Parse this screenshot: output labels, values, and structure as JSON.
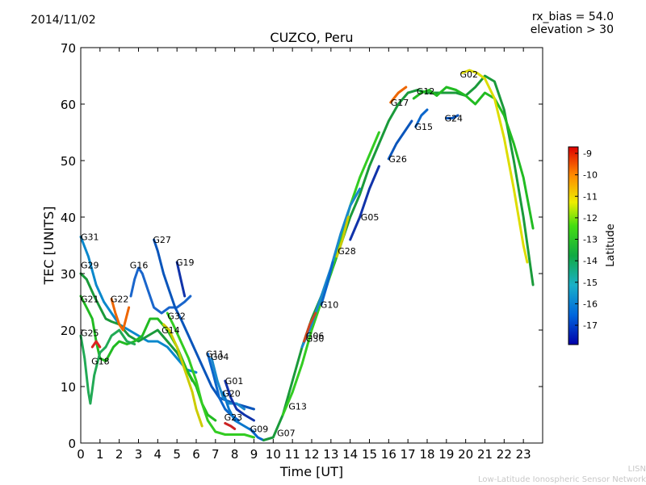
{
  "header": {
    "date": "2014/11/02",
    "rx_bias": "rx_bias = 54.0",
    "elevation": "elevation > 30"
  },
  "credit": {
    "short": "LISN",
    "long": "Low-Latitude Ionospheric Sensor Network"
  },
  "chart_data": {
    "type": "scatter",
    "title": "CUZCO, Peru",
    "xlabel": "Time [UT]",
    "ylabel": "TEC [UNITS]",
    "xlim": [
      0,
      24
    ],
    "ylim": [
      0,
      70
    ],
    "xticks": [
      "0",
      "1",
      "2",
      "3",
      "4",
      "5",
      "6",
      "7",
      "8",
      "9",
      "10",
      "11",
      "12",
      "13",
      "14",
      "15",
      "16",
      "17",
      "18",
      "19",
      "20",
      "21",
      "22",
      "23"
    ],
    "yticks": [
      "0",
      "10",
      "20",
      "30",
      "40",
      "50",
      "60",
      "70"
    ],
    "grid": false,
    "colorbar": {
      "label": "Latitude",
      "range": [
        -17.9,
        -8.7
      ],
      "ticks": [
        "-9",
        "-10",
        "-11",
        "-12",
        "-13",
        "-14",
        "-15",
        "-16",
        "-17"
      ]
    },
    "series": [
      {
        "name": "G31",
        "label_at": [
          0.0,
          36.5
        ],
        "color": "#0a88cc",
        "points": [
          [
            0.0,
            36.5
          ],
          [
            0.4,
            33
          ],
          [
            0.8,
            28
          ],
          [
            1.2,
            25
          ],
          [
            1.6,
            23
          ],
          [
            2.0,
            21
          ],
          [
            2.5,
            20
          ],
          [
            3.0,
            19
          ],
          [
            3.5,
            18
          ],
          [
            4.0,
            18
          ],
          [
            4.5,
            17
          ],
          [
            5.0,
            15
          ],
          [
            5.5,
            13
          ],
          [
            6.0,
            12.5
          ]
        ]
      },
      {
        "name": "G29",
        "label_at": [
          0.0,
          31.5
        ],
        "color": "#1a9a3a",
        "points": [
          [
            0.0,
            30
          ],
          [
            0.3,
            29
          ],
          [
            0.7,
            26
          ],
          [
            1.0,
            24
          ],
          [
            1.3,
            22
          ],
          [
            1.6,
            21.5
          ],
          [
            2.0,
            21
          ],
          [
            2.5,
            19
          ],
          [
            3.0,
            18
          ],
          [
            3.5,
            19
          ],
          [
            4.0,
            20
          ],
          [
            4.5,
            18
          ],
          [
            5.0,
            16
          ],
          [
            5.5,
            13
          ],
          [
            5.8,
            11
          ]
        ]
      },
      {
        "name": "G21",
        "label_at": [
          0.0,
          25.5
        ],
        "color": "#22bb22",
        "points": [
          [
            0.0,
            26
          ],
          [
            0.3,
            24
          ],
          [
            0.6,
            22
          ],
          [
            0.8,
            18
          ],
          [
            1.0,
            15
          ],
          [
            1.3,
            14.5
          ],
          [
            1.7,
            17
          ],
          [
            2.0,
            18
          ],
          [
            2.4,
            17.5
          ],
          [
            2.8,
            18
          ],
          [
            3.2,
            19
          ],
          [
            3.6,
            22
          ],
          [
            4.0,
            22
          ],
          [
            4.5,
            20
          ],
          [
            5.0,
            17
          ],
          [
            5.5,
            13
          ],
          [
            6.0,
            10
          ],
          [
            6.3,
            7
          ],
          [
            6.6,
            5
          ],
          [
            7.0,
            4
          ]
        ]
      },
      {
        "name": "G22",
        "label_at": [
          1.55,
          25.5
        ],
        "color": "#ee6600",
        "points": [
          [
            1.6,
            25.5
          ],
          [
            1.8,
            23
          ],
          [
            2.0,
            21
          ],
          [
            2.2,
            20
          ],
          [
            2.5,
            24
          ]
        ]
      },
      {
        "name": "G25",
        "label_at": [
          0.0,
          19.5
        ],
        "color": "#22aa55",
        "points": [
          [
            0.0,
            19
          ],
          [
            0.2,
            15
          ],
          [
            0.4,
            9
          ],
          [
            0.5,
            7
          ],
          [
            0.7,
            12
          ],
          [
            1.0,
            16
          ],
          [
            1.3,
            17
          ],
          [
            1.6,
            19
          ],
          [
            2.0,
            20
          ],
          [
            2.4,
            18
          ],
          [
            2.8,
            17.5
          ]
        ]
      },
      {
        "name": "G18",
        "label_at": [
          0.55,
          14.5
        ],
        "color": "#dd2222",
        "points": [
          [
            0.6,
            17
          ],
          [
            0.8,
            18
          ],
          [
            1.0,
            17
          ]
        ]
      },
      {
        "name": "G16",
        "label_at": [
          2.55,
          31.5
        ],
        "color": "#1a66cc",
        "points": [
          [
            2.6,
            26
          ],
          [
            2.8,
            29
          ],
          [
            3.0,
            31
          ],
          [
            3.2,
            30
          ],
          [
            3.5,
            27
          ],
          [
            3.8,
            24
          ],
          [
            4.2,
            23
          ],
          [
            4.6,
            24
          ],
          [
            5.0,
            24
          ],
          [
            5.4,
            25
          ],
          [
            5.7,
            26
          ]
        ]
      },
      {
        "name": "G27",
        "label_at": [
          3.75,
          36.0
        ],
        "color": "#0a55bb",
        "points": [
          [
            3.8,
            36
          ],
          [
            4.0,
            34
          ],
          [
            4.3,
            30
          ],
          [
            4.6,
            27
          ],
          [
            4.9,
            24
          ],
          [
            5.2,
            22
          ],
          [
            5.6,
            19
          ],
          [
            6.0,
            16
          ],
          [
            6.4,
            13
          ],
          [
            6.8,
            10
          ],
          [
            7.2,
            8
          ],
          [
            7.6,
            7.5
          ],
          [
            8.0,
            7
          ],
          [
            8.5,
            6.5
          ],
          [
            9.0,
            6
          ]
        ]
      },
      {
        "name": "G19",
        "label_at": [
          4.95,
          32.0
        ],
        "color": "#1133aa",
        "points": [
          [
            5.0,
            32
          ],
          [
            5.2,
            29
          ],
          [
            5.4,
            26
          ]
        ]
      },
      {
        "name": "G32",
        "label_at": [
          4.5,
          22.5
        ],
        "color": "#33cc22",
        "points": [
          [
            4.5,
            23
          ],
          [
            4.8,
            21
          ],
          [
            5.2,
            18
          ],
          [
            5.6,
            15
          ],
          [
            6.0,
            11
          ],
          [
            6.3,
            7
          ],
          [
            6.6,
            4
          ],
          [
            7.0,
            2
          ],
          [
            7.5,
            1.5
          ],
          [
            8.0,
            1.5
          ],
          [
            8.5,
            1.5
          ],
          [
            9.0,
            1
          ]
        ]
      },
      {
        "name": "G14",
        "label_at": [
          4.2,
          20.0
        ],
        "color": "#cccc00",
        "points": [
          [
            4.3,
            21
          ],
          [
            4.6,
            20
          ],
          [
            5.0,
            17
          ],
          [
            5.4,
            13
          ],
          [
            5.8,
            9
          ],
          [
            6.0,
            6
          ],
          [
            6.3,
            3
          ]
        ]
      },
      {
        "name": "G11",
        "label_at": [
          6.5,
          15.8
        ],
        "color": "#0a66cc",
        "points": [
          [
            6.6,
            15.8
          ],
          [
            6.9,
            12
          ],
          [
            7.2,
            8
          ],
          [
            7.5,
            6
          ],
          [
            7.8,
            5
          ],
          [
            8.2,
            4
          ]
        ]
      },
      {
        "name": "G04",
        "label_at": [
          6.75,
          15.3
        ],
        "color": "#1a88cc",
        "points": [
          [
            6.8,
            15
          ],
          [
            7.1,
            11
          ],
          [
            7.4,
            8
          ],
          [
            7.7,
            7
          ],
          [
            8.1,
            7
          ],
          [
            8.5,
            6
          ]
        ]
      },
      {
        "name": "G01",
        "label_at": [
          7.5,
          11.0
        ],
        "color": "#1133aa",
        "points": [
          [
            7.5,
            11
          ],
          [
            7.8,
            8
          ],
          [
            8.1,
            6
          ],
          [
            8.5,
            5
          ],
          [
            9.0,
            4
          ]
        ]
      },
      {
        "name": "G20",
        "label_at": [
          7.35,
          8.8
        ],
        "color": "#0a77cc",
        "points": [
          [
            7.4,
            9
          ],
          [
            7.7,
            6
          ],
          [
            8.0,
            4
          ],
          [
            8.5,
            3
          ],
          [
            9.0,
            2
          ]
        ]
      },
      {
        "name": "G23",
        "label_at": [
          7.45,
          4.6
        ],
        "color": "#cc2222",
        "points": [
          [
            7.5,
            3.5
          ],
          [
            7.8,
            3
          ],
          [
            8.0,
            2.5
          ]
        ]
      },
      {
        "name": "G09",
        "label_at": [
          8.8,
          2.5
        ],
        "color": "#0a66cc",
        "points": [
          [
            8.8,
            2.5
          ],
          [
            9.2,
            1
          ],
          [
            9.5,
            0.5
          ]
        ]
      },
      {
        "name": "G07",
        "label_at": [
          10.2,
          1.8
        ],
        "color": "#1a9a3a",
        "points": [
          [
            9.5,
            0.5
          ],
          [
            10.0,
            1
          ],
          [
            10.5,
            5
          ],
          [
            11.0,
            11
          ],
          [
            11.5,
            17
          ],
          [
            12.0,
            22
          ],
          [
            12.5,
            26
          ],
          [
            13.0,
            30
          ],
          [
            13.5,
            35
          ],
          [
            14.0,
            40
          ],
          [
            14.5,
            44
          ],
          [
            15.0,
            49
          ],
          [
            15.5,
            53
          ],
          [
            16.0,
            57
          ],
          [
            16.5,
            60
          ],
          [
            17.0,
            62
          ],
          [
            17.5,
            62.5
          ],
          [
            18.0,
            62
          ],
          [
            18.5,
            62
          ],
          [
            19.0,
            62
          ],
          [
            19.5,
            62
          ],
          [
            20.0,
            61.5
          ],
          [
            20.5,
            63
          ],
          [
            21.0,
            65
          ],
          [
            21.5,
            64
          ],
          [
            22.0,
            59
          ],
          [
            22.5,
            50
          ],
          [
            23.0,
            40
          ],
          [
            23.5,
            28
          ]
        ]
      },
      {
        "name": "G13",
        "label_at": [
          10.8,
          6.5
        ],
        "color": "#33cc22",
        "points": [
          [
            10.5,
            5
          ],
          [
            11.0,
            9
          ],
          [
            11.5,
            14
          ],
          [
            12.0,
            20
          ],
          [
            12.5,
            25
          ],
          [
            13.0,
            30
          ],
          [
            13.5,
            36
          ],
          [
            14.0,
            42
          ],
          [
            14.5,
            47
          ],
          [
            15.0,
            51
          ],
          [
            15.5,
            55
          ]
        ]
      },
      {
        "name": "G06",
        "label_at": [
          11.7,
          19.0
        ],
        "color": "#1a88cc",
        "points": [
          [
            11.5,
            17
          ],
          [
            12.0,
            21
          ],
          [
            12.5,
            26
          ],
          [
            13.0,
            31
          ],
          [
            13.5,
            37
          ],
          [
            14.0,
            42
          ],
          [
            14.5,
            45
          ]
        ]
      },
      {
        "name": "G30",
        "label_at": [
          11.7,
          18.5
        ],
        "color": "#cc4422",
        "points": [
          [
            11.6,
            18
          ],
          [
            11.9,
            21
          ],
          [
            12.2,
            23
          ]
        ]
      },
      {
        "name": "G10",
        "label_at": [
          12.45,
          24.5
        ],
        "color": "#0a66cc",
        "points": [
          [
            12.5,
            24.5
          ],
          [
            12.8,
            28
          ],
          [
            13.1,
            32
          ]
        ]
      },
      {
        "name": "G28",
        "label_at": [
          13.35,
          34.0
        ],
        "color": "#cccc00",
        "points": [
          [
            13.3,
            33
          ],
          [
            13.6,
            36
          ],
          [
            13.9,
            40
          ]
        ]
      },
      {
        "name": "G05",
        "label_at": [
          14.55,
          40.0
        ],
        "color": "#1133aa",
        "points": [
          [
            14.0,
            36
          ],
          [
            14.5,
            40
          ],
          [
            15.0,
            45
          ],
          [
            15.5,
            49
          ]
        ]
      },
      {
        "name": "G26",
        "label_at": [
          16.0,
          50.3
        ],
        "color": "#0a55bb",
        "points": [
          [
            16.0,
            50.3
          ],
          [
            16.4,
            53
          ],
          [
            16.8,
            55
          ],
          [
            17.2,
            57
          ]
        ]
      },
      {
        "name": "G17",
        "label_at": [
          16.1,
          60.3
        ],
        "color": "#ee6600",
        "points": [
          [
            16.1,
            60.3
          ],
          [
            16.5,
            62
          ],
          [
            16.9,
            63
          ]
        ]
      },
      {
        "name": "G15",
        "label_at": [
          17.35,
          56.0
        ],
        "color": "#0a66cc",
        "points": [
          [
            17.4,
            56
          ],
          [
            17.7,
            58
          ],
          [
            18.0,
            59
          ]
        ]
      },
      {
        "name": "G12",
        "label_at": [
          17.45,
          62.3
        ],
        "color": "#22bb22",
        "points": [
          [
            17.3,
            61
          ],
          [
            17.7,
            62
          ],
          [
            18.1,
            62.5
          ],
          [
            18.5,
            61.5
          ],
          [
            19.0,
            63
          ],
          [
            19.5,
            62.5
          ],
          [
            20.0,
            61.5
          ],
          [
            20.5,
            60
          ],
          [
            21.0,
            62
          ],
          [
            21.5,
            61
          ],
          [
            22.0,
            58
          ],
          [
            22.5,
            53
          ],
          [
            23.0,
            47
          ],
          [
            23.5,
            38
          ]
        ]
      },
      {
        "name": "G24",
        "label_at": [
          18.9,
          57.5
        ],
        "color": "#0a55bb",
        "points": [
          [
            19.0,
            57.5
          ],
          [
            19.3,
            57.5
          ],
          [
            19.6,
            58
          ]
        ]
      },
      {
        "name": "G02",
        "label_at": [
          19.7,
          65.3
        ],
        "color": "#dddd00",
        "points": [
          [
            19.8,
            65.5
          ],
          [
            20.2,
            66
          ],
          [
            20.6,
            65.5
          ],
          [
            21.0,
            64.5
          ],
          [
            21.5,
            61
          ],
          [
            22.0,
            54
          ],
          [
            22.5,
            45
          ],
          [
            23.0,
            35
          ],
          [
            23.2,
            32
          ]
        ]
      }
    ]
  }
}
